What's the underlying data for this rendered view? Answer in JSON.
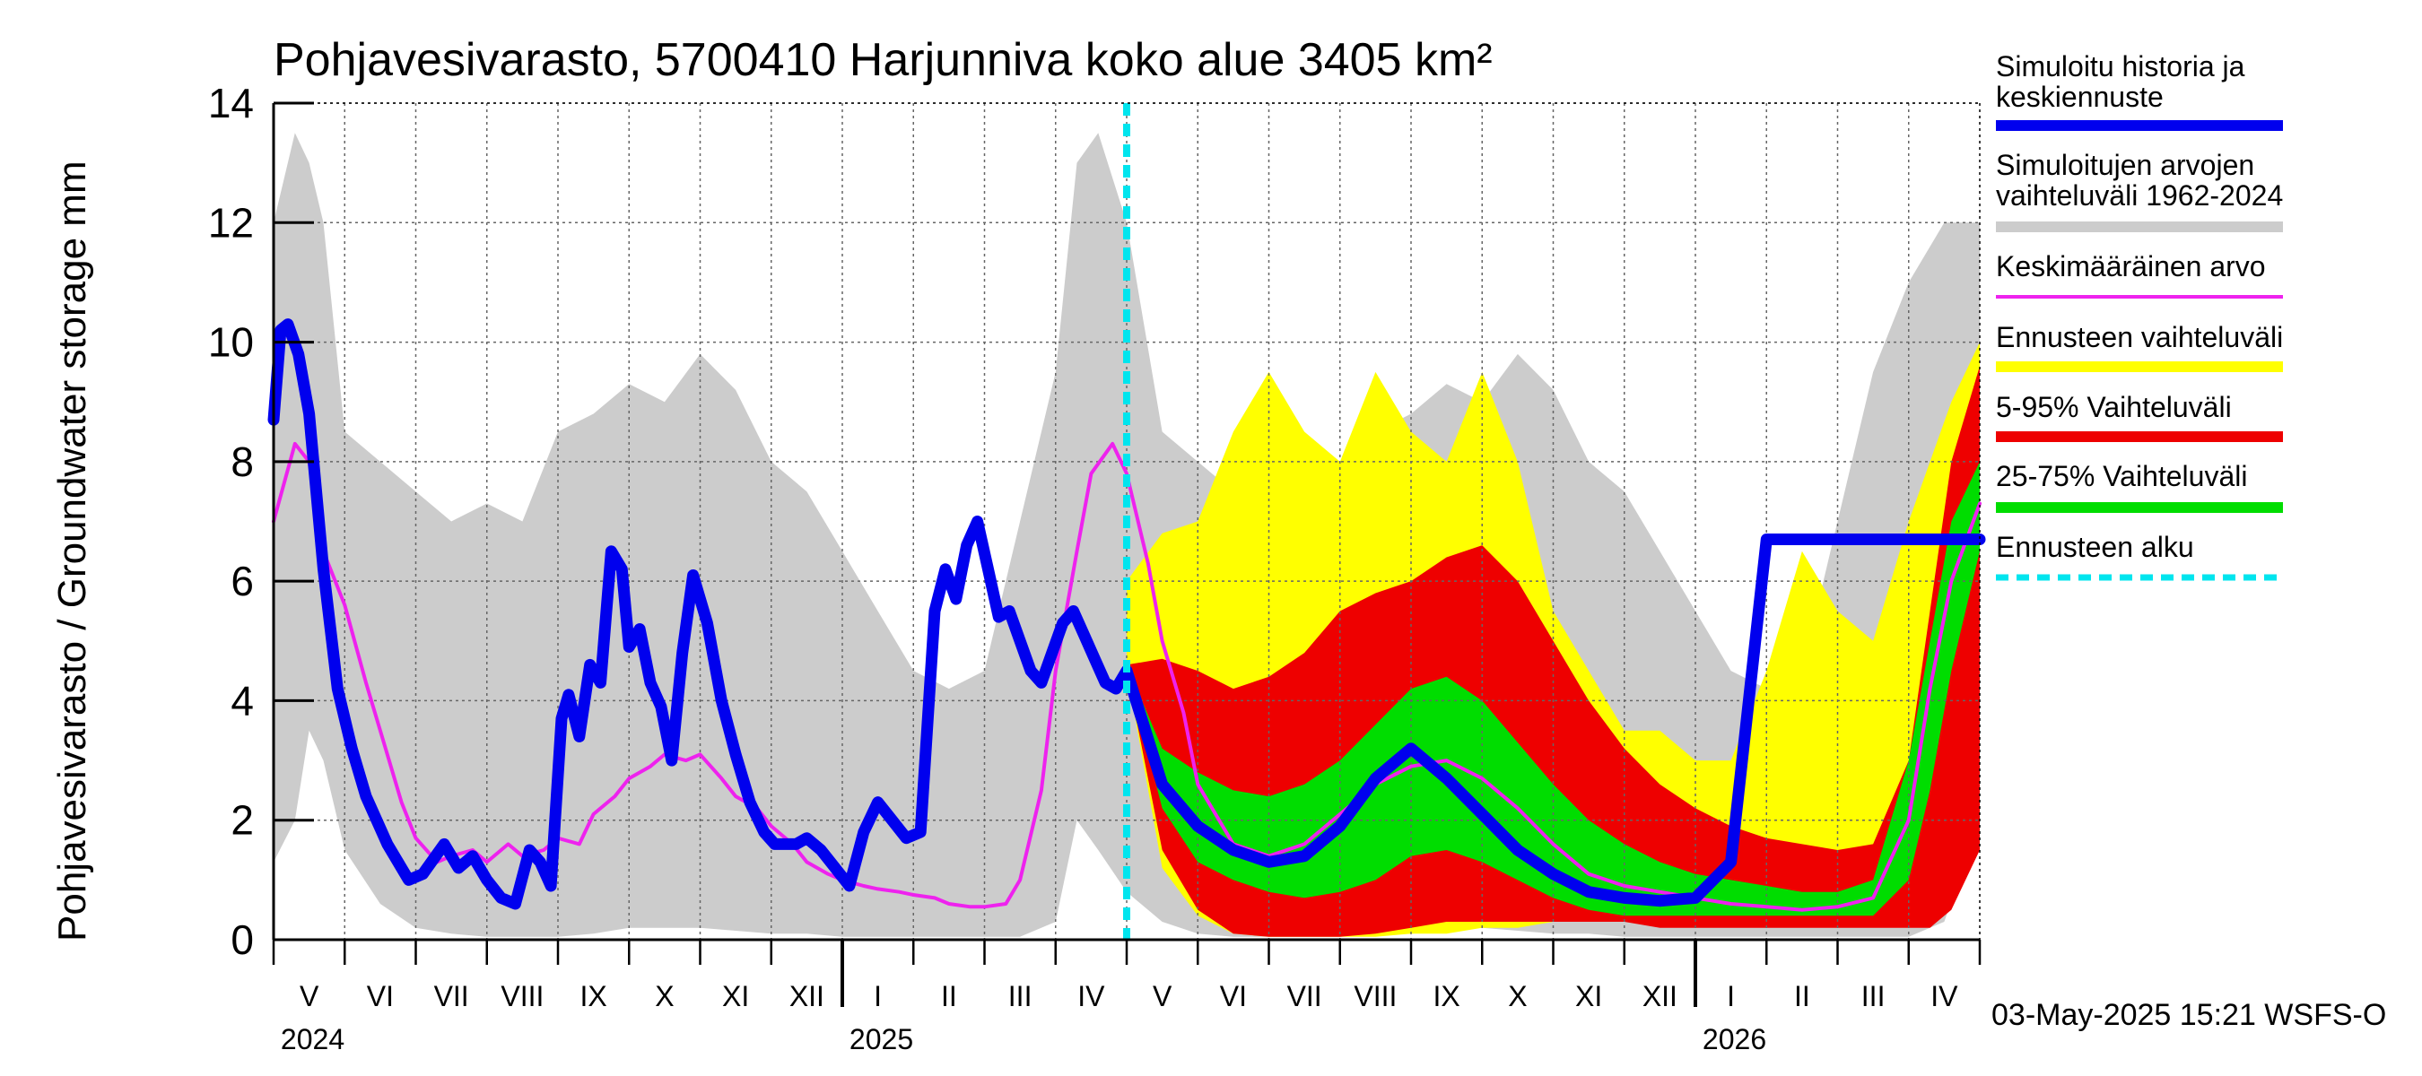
{
  "chart_data": {
    "type": "area",
    "title": "Pohjavesivarasto, 5700410 Harjunniva koko alue 3405 km²",
    "ylabel": "Pohjavesivarasto / Groundwater storage   mm",
    "ylim": [
      0,
      14
    ],
    "yticks": [
      "0",
      "2",
      "4",
      "6",
      "8",
      "10",
      "12",
      "14"
    ],
    "months": [
      "V",
      "VI",
      "VII",
      "VIII",
      "IX",
      "X",
      "XI",
      "XII",
      "I",
      "II",
      "III",
      "IV",
      "V",
      "VI",
      "VII",
      "VIII",
      "IX",
      "X",
      "XI",
      "XII",
      "I",
      "II",
      "III",
      "IV"
    ],
    "years": [
      "2024",
      "2025",
      "2026"
    ],
    "footer": "03-May-2025 15:21 WSFS-O",
    "legend_placement": "right",
    "legend": [
      {
        "label": "Simuloitu historia ja keskiennuste",
        "color": "#0000ee"
      },
      {
        "label": "Simuloitujen arvojen vaihteluväli 1962-2024",
        "color": "#cccccc"
      },
      {
        "label": "Keskimääräinen arvo",
        "color": "#ee22ee"
      },
      {
        "label": "Ennusteen vaihteluväli",
        "color": "#ffff00"
      },
      {
        "label": "5-95% Vaihteluväli",
        "color": "#ee0000"
      },
      {
        "label": "25-75% Vaihteluväli",
        "color": "#00dd00"
      },
      {
        "label": "Ennusteen alku",
        "color": "#00e5ee"
      }
    ],
    "forecast_start_month": 12.0,
    "series": [
      {
        "name": "Simuloitu historia ja keskiennuste",
        "x": [
          0,
          0.1,
          0.2,
          0.35,
          0.5,
          0.7,
          0.9,
          1.1,
          1.3,
          1.6,
          1.9,
          2.1,
          2.4,
          2.6,
          2.8,
          3.0,
          3.2,
          3.4,
          3.6,
          3.75,
          3.9,
          4.05,
          4.15,
          4.3,
          4.45,
          4.6,
          4.75,
          4.9,
          5.0,
          5.15,
          5.3,
          5.45,
          5.6,
          5.75,
          5.9,
          6.1,
          6.3,
          6.5,
          6.7,
          6.9,
          7.05,
          7.2,
          7.35,
          7.5,
          7.7,
          7.9,
          8.1,
          8.3,
          8.5,
          8.7,
          8.9,
          9.1,
          9.3,
          9.45,
          9.6,
          9.75,
          9.9,
          10.05,
          10.2,
          10.35,
          10.5,
          10.65,
          10.8,
          10.95,
          11.1,
          11.25,
          11.4,
          11.55,
          11.7,
          11.85,
          12.0,
          12.5,
          13.0,
          13.5,
          14.0,
          14.5,
          15.0,
          15.5,
          16.0,
          16.5,
          17.0,
          17.5,
          18.0,
          18.5,
          19.0,
          19.5,
          20.0,
          20.5,
          21.0,
          21.5,
          22.0,
          22.5,
          23.0,
          23.5,
          24.0
        ],
        "y": [
          8.7,
          10.2,
          10.3,
          9.8,
          8.8,
          6.2,
          4.2,
          3.2,
          2.4,
          1.6,
          1.0,
          1.1,
          1.6,
          1.2,
          1.4,
          1.0,
          0.7,
          0.6,
          1.5,
          1.3,
          0.9,
          3.7,
          4.1,
          3.4,
          4.6,
          4.3,
          6.5,
          6.2,
          4.9,
          5.2,
          4.3,
          3.9,
          3.0,
          4.8,
          6.1,
          5.3,
          4.0,
          3.1,
          2.3,
          1.8,
          1.6,
          1.6,
          1.6,
          1.7,
          1.5,
          1.2,
          0.9,
          1.8,
          2.3,
          2.0,
          1.7,
          1.8,
          5.5,
          6.2,
          5.7,
          6.6,
          7.0,
          6.2,
          5.4,
          5.5,
          5.0,
          4.5,
          4.3,
          4.8,
          5.3,
          5.5,
          5.1,
          4.7,
          4.3,
          4.2,
          4.5,
          2.6,
          1.9,
          1.5,
          1.3,
          1.4,
          1.9,
          2.7,
          3.2,
          2.7,
          2.1,
          1.5,
          1.1,
          0.8,
          0.7,
          0.65,
          0.7,
          1.3,
          6.7,
          6.7,
          6.7,
          6.7,
          6.7,
          6.7,
          6.7
        ]
      },
      {
        "name": "Keskimääräinen arvo",
        "x": [
          0,
          0.3,
          0.5,
          0.7,
          1.0,
          1.3,
          1.5,
          1.8,
          2.0,
          2.3,
          2.5,
          2.8,
          3.0,
          3.3,
          3.5,
          3.8,
          4.0,
          4.3,
          4.5,
          4.8,
          5.0,
          5.3,
          5.5,
          5.8,
          6.0,
          6.3,
          6.5,
          6.8,
          7.0,
          7.3,
          7.5,
          7.8,
          8.0,
          8.3,
          8.5,
          8.8,
          9.0,
          9.3,
          9.5,
          9.8,
          10.0,
          10.3,
          10.5,
          10.8,
          11.0,
          11.3,
          11.5,
          11.8,
          12.0,
          12.3,
          12.5,
          12.8,
          13.0,
          13.5,
          14.0,
          14.5,
          15.0,
          15.5,
          16.0,
          16.5,
          17.0,
          17.5,
          18.0,
          18.5,
          19.0,
          19.5,
          20.0,
          20.5,
          21.0,
          21.5,
          22.0,
          22.5,
          23.0,
          23.3,
          23.6,
          24.0
        ],
        "y": [
          7.0,
          8.3,
          8.0,
          6.5,
          5.6,
          4.3,
          3.5,
          2.3,
          1.7,
          1.3,
          1.4,
          1.5,
          1.3,
          1.6,
          1.4,
          1.5,
          1.7,
          1.6,
          2.1,
          2.4,
          2.7,
          2.9,
          3.1,
          3.0,
          3.1,
          2.7,
          2.4,
          2.2,
          1.9,
          1.6,
          1.3,
          1.1,
          1.0,
          0.9,
          0.85,
          0.8,
          0.75,
          0.7,
          0.6,
          0.55,
          0.55,
          0.6,
          1.0,
          2.5,
          4.5,
          6.5,
          7.8,
          8.3,
          7.8,
          6.3,
          5.0,
          3.8,
          2.6,
          1.6,
          1.4,
          1.6,
          2.1,
          2.6,
          2.9,
          3.0,
          2.7,
          2.2,
          1.6,
          1.1,
          0.9,
          0.8,
          0.7,
          0.6,
          0.55,
          0.5,
          0.55,
          0.7,
          2.0,
          4.2,
          6.0,
          7.3
        ]
      }
    ],
    "bands": [
      {
        "name": "Simuloitujen arvojen vaihteluväli 1962-2024",
        "x": [
          0,
          0.3,
          0.5,
          0.7,
          1.0,
          1.5,
          2.0,
          2.5,
          3.0,
          3.5,
          4.0,
          4.5,
          5.0,
          5.5,
          6.0,
          6.5,
          7.0,
          7.5,
          8.0,
          8.5,
          9.0,
          9.5,
          10.0,
          10.5,
          11.0,
          11.3,
          11.6,
          12.0,
          12.5,
          13.0,
          13.5,
          14.0,
          14.5,
          15.0,
          15.5,
          16.0,
          16.5,
          17.0,
          17.5,
          18.0,
          18.5,
          19.0,
          19.5,
          20.0,
          20.5,
          21.0,
          21.5,
          22.0,
          22.5,
          23.0,
          23.5,
          24.0
        ],
        "lo": [
          1.3,
          2.0,
          3.5,
          3.0,
          1.5,
          0.6,
          0.2,
          0.1,
          0.05,
          0.05,
          0.05,
          0.1,
          0.2,
          0.2,
          0.2,
          0.15,
          0.1,
          0.1,
          0.05,
          0.05,
          0.05,
          0.05,
          0.05,
          0.05,
          0.3,
          2.0,
          1.5,
          0.8,
          0.3,
          0.1,
          0.05,
          0.05,
          0.05,
          0.05,
          0.1,
          0.2,
          0.2,
          0.2,
          0.15,
          0.1,
          0.1,
          0.05,
          0.05,
          0.05,
          0.05,
          0.05,
          0.05,
          0.05,
          0.05,
          0.05,
          0.3,
          2.0
        ],
        "hi": [
          12.0,
          13.5,
          13.0,
          12.0,
          8.5,
          8.0,
          7.5,
          7.0,
          7.3,
          7.0,
          8.5,
          8.8,
          9.3,
          9.0,
          9.8,
          9.2,
          8.0,
          7.5,
          6.5,
          5.5,
          4.5,
          4.2,
          4.5,
          7.0,
          9.5,
          13.0,
          13.5,
          12.0,
          8.5,
          8.0,
          7.5,
          7.0,
          7.3,
          7.0,
          8.5,
          8.8,
          9.3,
          9.0,
          9.8,
          9.2,
          8.0,
          7.5,
          6.5,
          5.5,
          4.5,
          4.2,
          4.5,
          7.0,
          9.5,
          11.0,
          12.0,
          12.0
        ]
      },
      {
        "name": "Ennusteen vaihteluväli",
        "x": [
          12.0,
          12.5,
          13.0,
          13.5,
          14.0,
          14.5,
          15.0,
          15.5,
          16.0,
          16.5,
          17.0,
          17.5,
          18.0,
          18.5,
          19.0,
          19.5,
          20.0,
          20.5,
          21.0,
          21.5,
          22.0,
          22.5,
          23.0,
          23.3,
          23.6,
          24.0
        ],
        "lo": [
          4.5,
          1.2,
          0.4,
          0.1,
          0.05,
          0.05,
          0.05,
          0.05,
          0.1,
          0.1,
          0.2,
          0.2,
          0.3,
          0.4,
          0.3,
          0.3,
          0.3,
          0.3,
          0.3,
          0.3,
          0.3,
          0.3,
          0.3,
          0.5,
          1.0,
          2.5
        ],
        "hi": [
          6.0,
          6.8,
          7.0,
          8.5,
          9.5,
          8.5,
          8.0,
          9.5,
          8.5,
          8.0,
          9.5,
          8.0,
          5.5,
          4.5,
          3.5,
          3.5,
          3.0,
          3.0,
          4.5,
          6.5,
          5.5,
          5.0,
          7.0,
          8.0,
          9.0,
          10.0
        ]
      },
      {
        "name": "5-95% Vaihteluväli",
        "x": [
          12.0,
          12.5,
          13.0,
          13.5,
          14.0,
          14.5,
          15.0,
          15.5,
          16.0,
          16.5,
          17.0,
          17.5,
          18.0,
          18.5,
          19.0,
          19.5,
          20.0,
          20.5,
          21.0,
          21.5,
          22.0,
          22.5,
          23.0,
          23.3,
          23.6,
          24.0
        ],
        "lo": [
          4.5,
          1.5,
          0.5,
          0.1,
          0.05,
          0.05,
          0.05,
          0.1,
          0.2,
          0.3,
          0.3,
          0.3,
          0.3,
          0.3,
          0.3,
          0.2,
          0.2,
          0.2,
          0.2,
          0.2,
          0.2,
          0.2,
          0.2,
          0.2,
          0.5,
          1.5
        ],
        "hi": [
          4.6,
          4.7,
          4.5,
          4.2,
          4.4,
          4.8,
          5.5,
          5.8,
          6.0,
          6.4,
          6.6,
          6.0,
          5.0,
          4.0,
          3.2,
          2.6,
          2.2,
          1.9,
          1.7,
          1.6,
          1.5,
          1.6,
          3.0,
          5.5,
          8.0,
          9.6
        ]
      },
      {
        "name": "25-75% Vaihteluväli",
        "x": [
          12.0,
          12.5,
          13.0,
          13.5,
          14.0,
          14.5,
          15.0,
          15.5,
          16.0,
          16.5,
          17.0,
          17.5,
          18.0,
          18.5,
          19.0,
          19.5,
          20.0,
          20.5,
          21.0,
          21.5,
          22.0,
          22.5,
          23.0,
          23.3,
          23.6,
          24.0
        ],
        "lo": [
          4.5,
          2.2,
          1.3,
          1.0,
          0.8,
          0.7,
          0.8,
          1.0,
          1.4,
          1.5,
          1.3,
          1.0,
          0.7,
          0.5,
          0.4,
          0.4,
          0.4,
          0.4,
          0.4,
          0.4,
          0.4,
          0.4,
          1.0,
          2.5,
          4.5,
          6.5
        ],
        "hi": [
          4.6,
          3.2,
          2.8,
          2.5,
          2.4,
          2.6,
          3.0,
          3.6,
          4.2,
          4.4,
          4.0,
          3.3,
          2.6,
          2.0,
          1.6,
          1.3,
          1.1,
          1.0,
          0.9,
          0.8,
          0.8,
          1.0,
          3.0,
          5.0,
          7.0,
          8.0
        ]
      }
    ]
  }
}
